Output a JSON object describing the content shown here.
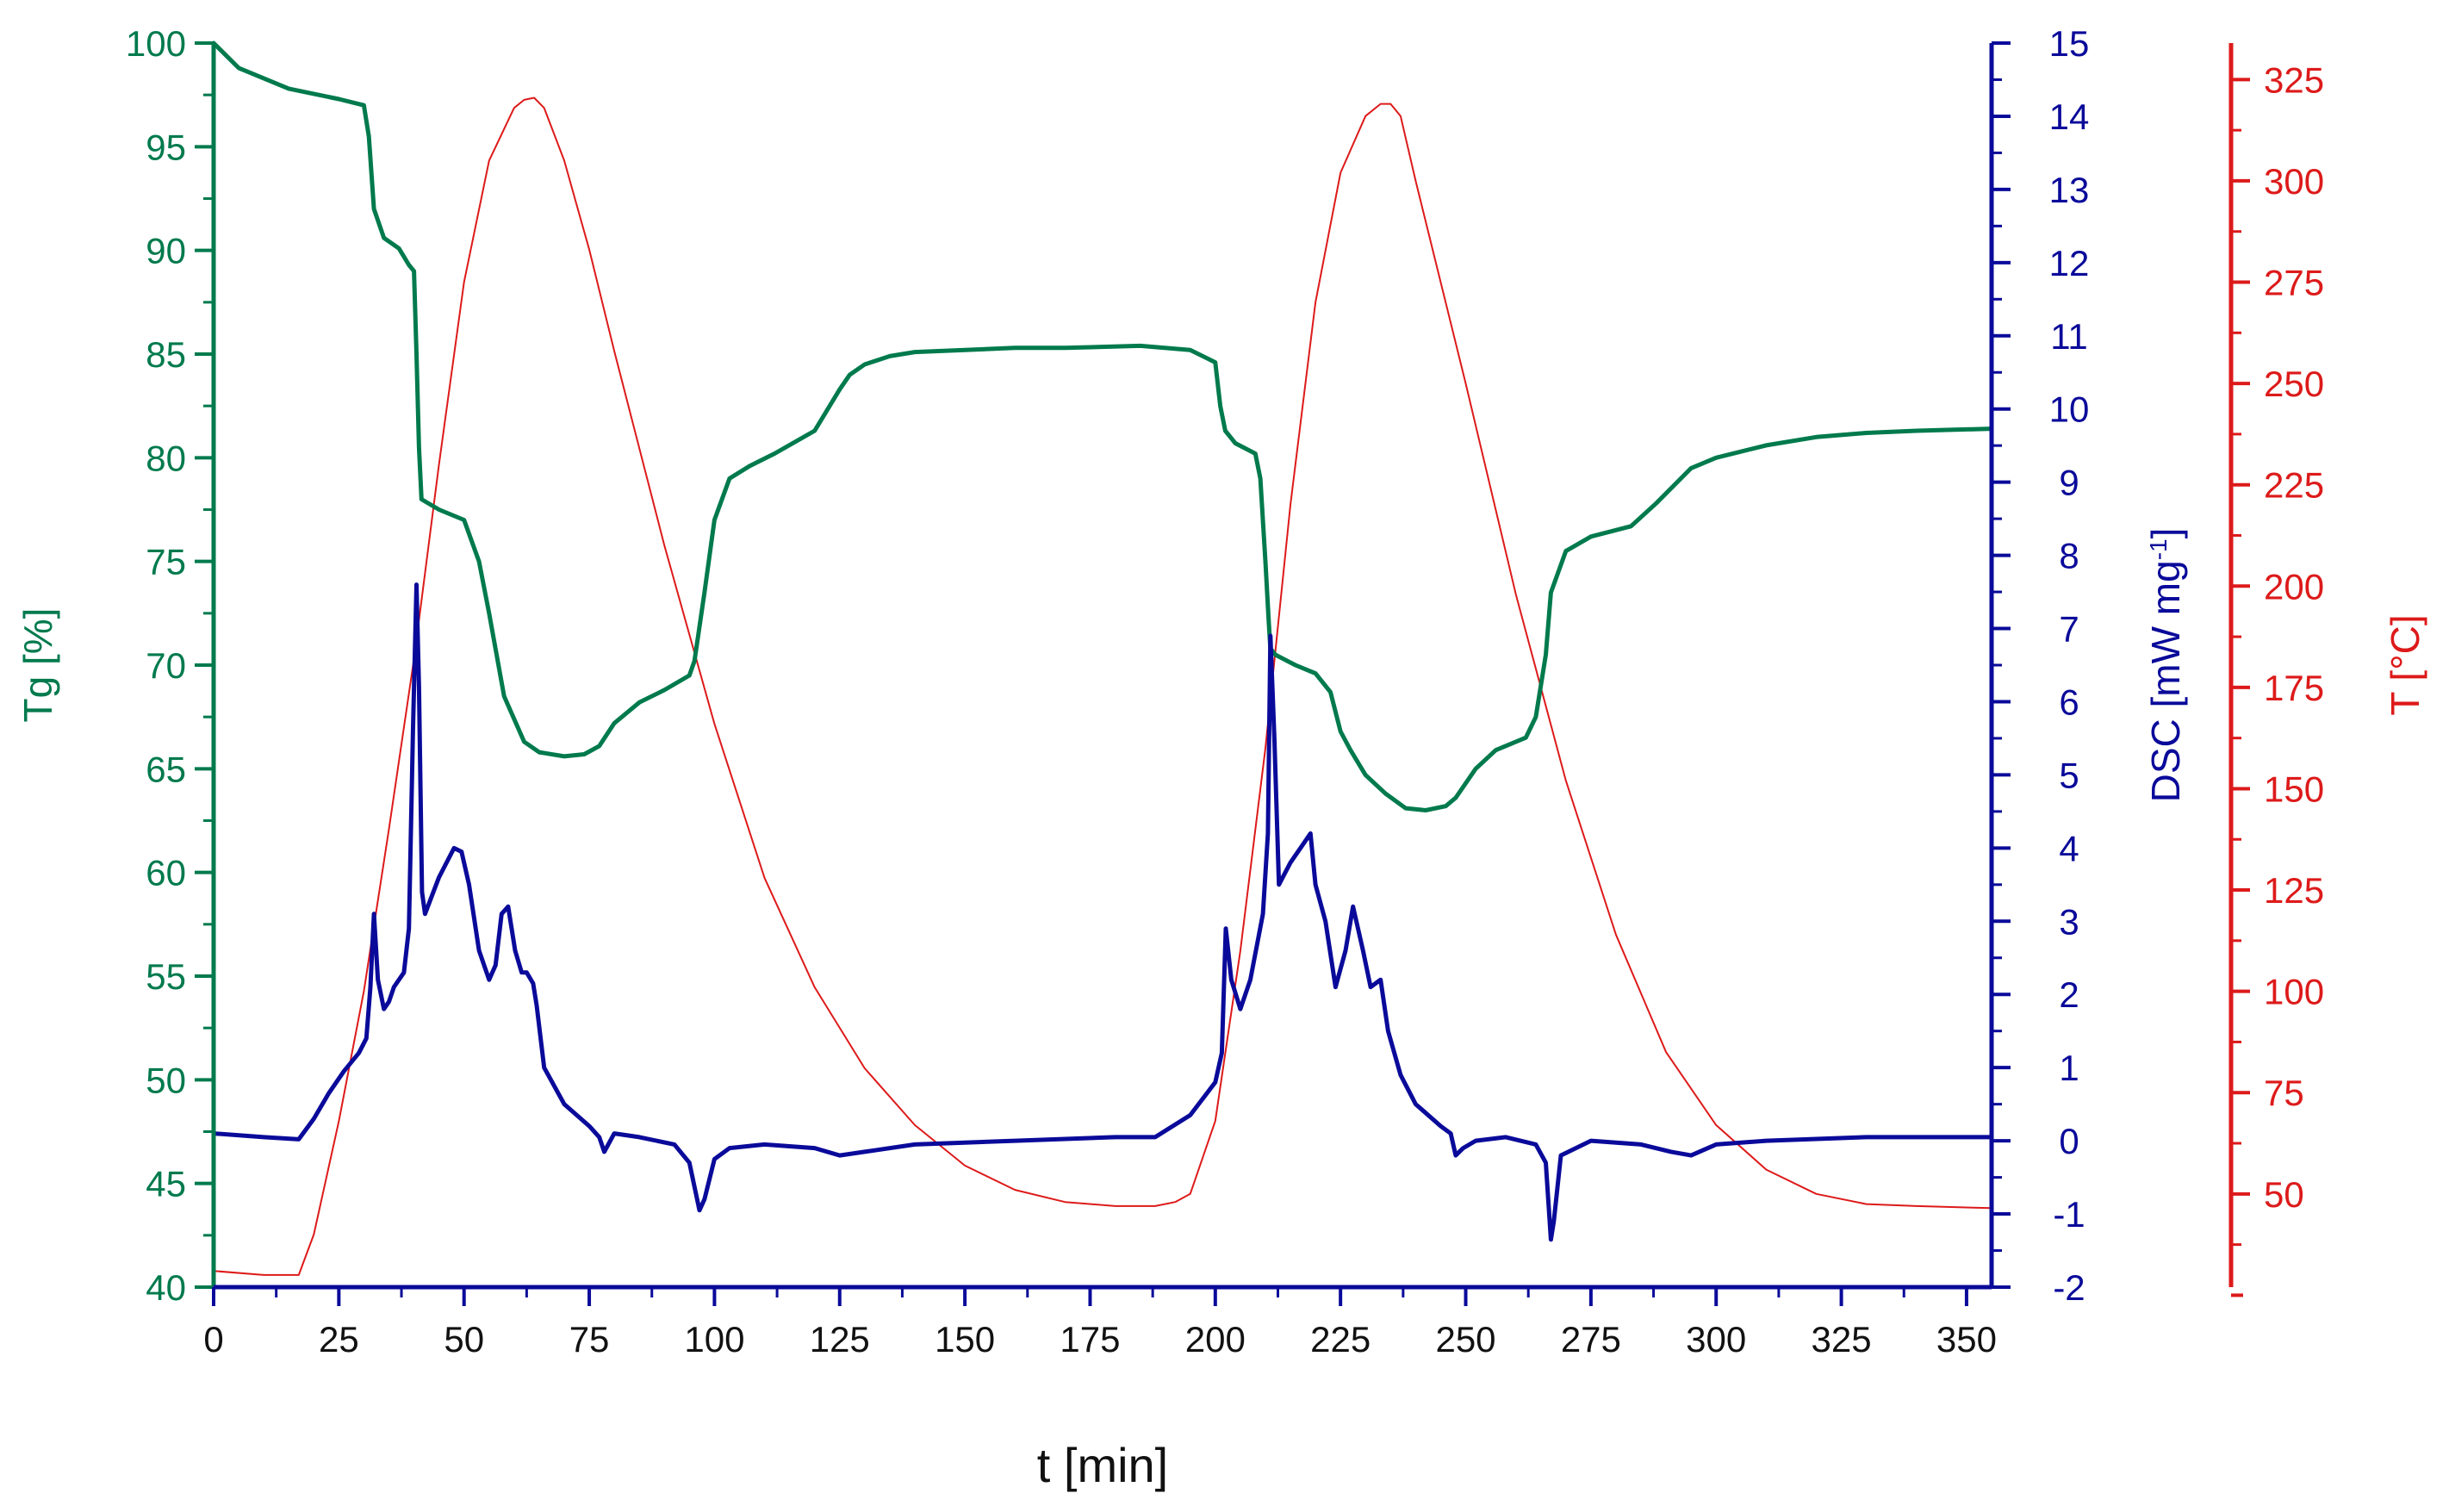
{
  "chart_data": {
    "type": "line",
    "title": "",
    "xlabel": "t [min]",
    "xlim": [
      0,
      355
    ],
    "xticks": [
      0,
      25,
      50,
      75,
      100,
      125,
      150,
      175,
      200,
      225,
      250,
      275,
      300,
      325,
      350
    ],
    "axes": {
      "tg": {
        "label": "Tg [%]",
        "ylim": [
          40,
          100
        ],
        "ticks": [
          40,
          45,
          50,
          55,
          60,
          65,
          70,
          75,
          80,
          85,
          90,
          95,
          100
        ],
        "color": "#007a4d"
      },
      "dsc": {
        "label_main": "DSC [mW mg",
        "label_exp": "-1",
        "label_end": "]",
        "ylim": [
          -2,
          15
        ],
        "ticks": [
          -2,
          -1,
          0,
          1,
          2,
          3,
          4,
          5,
          6,
          7,
          8,
          9,
          10,
          11,
          12,
          13,
          14,
          15
        ],
        "color": "#0a0a9a"
      },
      "temp": {
        "label": "T [°C]",
        "ylim": [
          27,
          334
        ],
        "ticks": [
          50,
          75,
          100,
          125,
          150,
          175,
          200,
          225,
          250,
          275,
          300,
          325
        ],
        "color": "#dd1a1a"
      }
    },
    "series": [
      {
        "name": "Tg",
        "axis": "tg",
        "x": [
          0,
          5,
          15,
          25,
          30,
          31,
          32,
          34,
          37,
          39,
          40,
          40.5,
          41,
          41.5,
          45,
          50,
          53,
          55,
          58,
          62,
          65,
          70,
          74,
          77,
          80,
          85,
          90,
          95,
          96,
          98,
          100,
          103,
          107,
          112,
          120,
          125,
          127,
          130,
          135,
          140,
          150,
          160,
          170,
          185,
          195,
          200,
          201,
          202,
          204,
          208,
          209,
          210,
          210.7,
          211,
          212,
          216,
          220,
          223,
          225,
          227,
          230,
          234,
          238,
          242,
          246,
          248,
          252,
          256,
          262,
          264,
          266,
          267,
          270,
          275,
          283,
          288,
          295,
          300,
          310,
          320,
          330,
          340,
          355
        ],
        "values": [
          100,
          98.8,
          97.8,
          97.3,
          97,
          95.5,
          92,
          90.6,
          90.1,
          89.3,
          89,
          85,
          80.5,
          78,
          77.5,
          77,
          75,
          72.5,
          68.5,
          66.3,
          65.8,
          65.6,
          65.7,
          66.1,
          67.2,
          68.2,
          68.8,
          69.5,
          70.2,
          73.5,
          77,
          79,
          79.6,
          80.2,
          81.3,
          83.3,
          84,
          84.5,
          84.9,
          85.1,
          85.2,
          85.3,
          85.3,
          85.4,
          85.2,
          84.6,
          82.5,
          81.3,
          80.7,
          80.2,
          79,
          75,
          72,
          70.8,
          70.5,
          70,
          69.6,
          68.7,
          66.8,
          65.9,
          64.7,
          63.8,
          63.1,
          63,
          63.2,
          63.6,
          65,
          65.9,
          66.5,
          67.5,
          70.5,
          73.5,
          75.5,
          76.2,
          76.7,
          77.8,
          79.5,
          80,
          80.6,
          81,
          81.2,
          81.3,
          81.4
        ]
      },
      {
        "name": "DSC",
        "axis": "dsc",
        "x": [
          0,
          10,
          17,
          20,
          23,
          26,
          29,
          30.5,
          31.3,
          32,
          32.8,
          34,
          35,
          36,
          38,
          39,
          39.8,
          40.5,
          41,
          41.6,
          42.2,
          45,
          48,
          49.5,
          51,
          53,
          55,
          56.3,
          57.5,
          58.8,
          60.2,
          61.5,
          62.5,
          63.8,
          64.5,
          66,
          70,
          75,
          77,
          78,
          80,
          85,
          92,
          95,
          97,
          98,
          100,
          103,
          110,
          120,
          125,
          130,
          140,
          160,
          180,
          188,
          195,
          200,
          201.3,
          202.1,
          203.2,
          205,
          207,
          209.5,
          210.5,
          211,
          211.8,
          212.7,
          215,
          218,
          219,
          220,
          222,
          224,
          226,
          227.5,
          229.5,
          231,
          233,
          234.5,
          237,
          240,
          245,
          247,
          248,
          249.5,
          252,
          258,
          264,
          266,
          267,
          267.6,
          269,
          275,
          285,
          291,
          295,
          300,
          310,
          330,
          355
        ],
        "values": [
          0.1,
          0.05,
          0.02,
          0.3,
          0.65,
          0.95,
          1.2,
          1.4,
          2.1,
          3.1,
          2.2,
          1.8,
          1.9,
          2.1,
          2.3,
          2.9,
          5.6,
          7.6,
          6.2,
          3.4,
          3.1,
          3.6,
          4,
          3.95,
          3.5,
          2.6,
          2.2,
          2.4,
          3.1,
          3.2,
          2.6,
          2.3,
          2.3,
          2.15,
          1.85,
          1.0,
          0.5,
          0.2,
          0.05,
          -0.15,
          0.1,
          0.05,
          -0.05,
          -0.3,
          -0.95,
          -0.8,
          -0.25,
          -0.1,
          -0.05,
          -0.1,
          -0.2,
          -0.15,
          -0.05,
          0,
          0.05,
          0.05,
          0.35,
          0.8,
          1.2,
          2.9,
          2.2,
          1.8,
          2.2,
          3.1,
          4.2,
          6.9,
          5.5,
          3.5,
          3.8,
          4.1,
          4.2,
          3.5,
          3.0,
          2.1,
          2.6,
          3.2,
          2.6,
          2.1,
          2.2,
          1.5,
          0.9,
          0.5,
          0.2,
          0.1,
          -0.2,
          -0.1,
          0,
          0.05,
          -0.05,
          -0.3,
          -1.35,
          -1.1,
          -0.2,
          0,
          -0.05,
          -0.15,
          -0.2,
          -0.05,
          0,
          0.05,
          0.05
        ]
      },
      {
        "name": "T",
        "axis": "temp",
        "x": [
          0,
          10,
          17,
          20,
          25,
          30,
          35,
          40,
          45,
          50,
          55,
          60,
          62,
          64,
          66,
          70,
          75,
          80,
          90,
          100,
          110,
          120,
          130,
          140,
          150,
          160,
          170,
          180,
          188,
          192,
          195,
          200,
          205,
          210,
          215,
          220,
          225,
          230,
          233,
          235,
          237,
          240,
          250,
          260,
          270,
          280,
          290,
          300,
          310,
          320,
          330,
          340,
          355
        ],
        "values": [
          31,
          30,
          30,
          40,
          68,
          100,
          140,
          182,
          230,
          275,
          305,
          318,
          320,
          320.5,
          318,
          305,
          283,
          258,
          210,
          166,
          128,
          101,
          81,
          67,
          57,
          51,
          48,
          47,
          47,
          48,
          50,
          68,
          110,
          160,
          220,
          270,
          302,
          316,
          319,
          319,
          316,
          300,
          250,
          198,
          152,
          114,
          85,
          67,
          56,
          50,
          47.5,
          47,
          46.5
        ]
      }
    ]
  }
}
